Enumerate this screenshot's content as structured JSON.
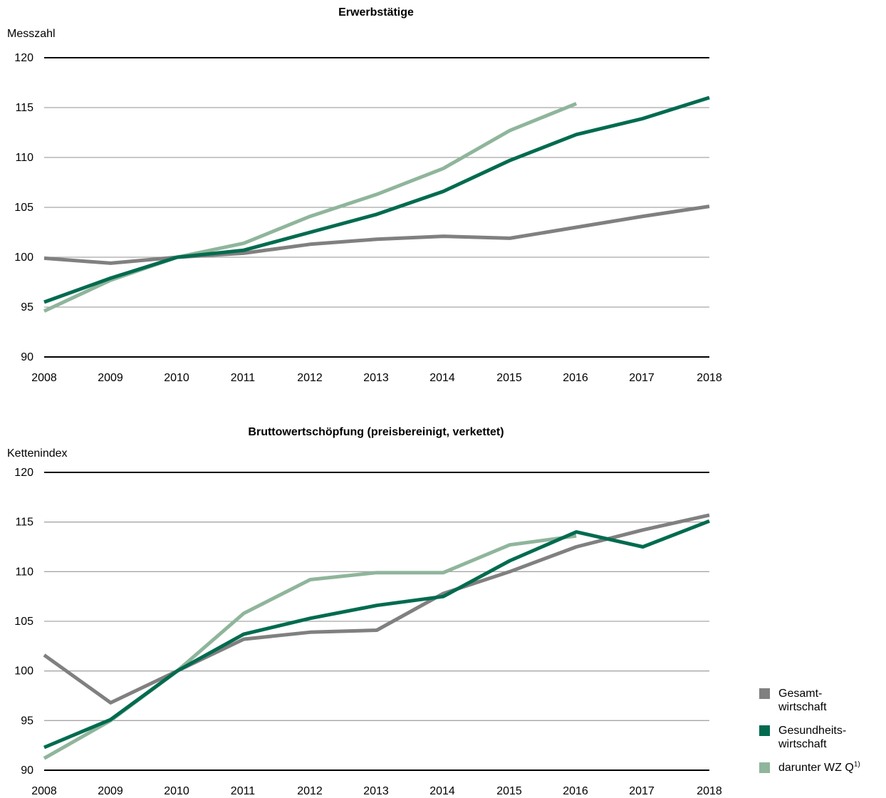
{
  "colors": {
    "gesamt": "#808080",
    "gesundheit": "#006b4f",
    "wzq": "#8fb59b",
    "grid": "#a6a6a6",
    "axis": "#000000"
  },
  "legend": [
    {
      "label": "Gesamt-\nwirtschaft",
      "color": "#808080"
    },
    {
      "label": "Gesundheits-\nwirtschaft",
      "color": "#006b4f"
    },
    {
      "label": "darunter WZ Q",
      "sup": "1)",
      "color": "#8fb59b"
    }
  ],
  "chart_data": [
    {
      "type": "line",
      "title": "Erwerbstätige",
      "ylabel": "Messzahl",
      "xlabel": "",
      "ylim": [
        90,
        120
      ],
      "yticks": [
        90,
        95,
        100,
        105,
        110,
        115,
        120
      ],
      "grid": true,
      "x": [
        "2008",
        "2009",
        "2010",
        "2011",
        "2012",
        "2013",
        "2014",
        "2015",
        "2016",
        "2017",
        "2018"
      ],
      "series": [
        {
          "key": "gesamt",
          "name": "Gesamtwirtschaft",
          "values": [
            99.9,
            99.4,
            100.0,
            100.4,
            101.3,
            101.8,
            102.1,
            101.9,
            103.0,
            104.1,
            105.1
          ]
        },
        {
          "key": "wzq",
          "name": "darunter WZ Q",
          "values": [
            94.6,
            97.7,
            100.0,
            101.4,
            104.1,
            106.3,
            108.9,
            112.7,
            115.4,
            null,
            null
          ]
        },
        {
          "key": "gesundheit",
          "name": "Gesundheitswirtschaft",
          "values": [
            95.5,
            97.9,
            100.0,
            100.7,
            102.5,
            104.3,
            106.6,
            109.7,
            112.3,
            113.9,
            116.0
          ]
        }
      ]
    },
    {
      "type": "line",
      "title": "Bruttowertschöpfung (preisbereinigt, verkettet)",
      "ylabel": "Kettenindex",
      "xlabel": "",
      "ylim": [
        90,
        120
      ],
      "yticks": [
        90,
        95,
        100,
        105,
        110,
        115,
        120
      ],
      "grid": true,
      "x": [
        "2008",
        "2009",
        "2010",
        "2011",
        "2012",
        "2013",
        "2014",
        "2015",
        "2016",
        "2017",
        "2018"
      ],
      "series": [
        {
          "key": "gesamt",
          "name": "Gesamtwirtschaft",
          "values": [
            101.6,
            96.8,
            100.0,
            103.2,
            103.9,
            104.1,
            107.8,
            110.0,
            112.5,
            114.2,
            115.7
          ]
        },
        {
          "key": "wzq",
          "name": "darunter WZ Q",
          "values": [
            91.2,
            95.0,
            100.0,
            105.8,
            109.2,
            109.9,
            109.9,
            112.7,
            113.6,
            null,
            null
          ]
        },
        {
          "key": "gesundheit",
          "name": "Gesundheitswirtschaft",
          "values": [
            92.3,
            95.1,
            100.0,
            103.7,
            105.3,
            106.6,
            107.5,
            111.1,
            114.0,
            112.5,
            115.1
          ]
        }
      ]
    }
  ]
}
